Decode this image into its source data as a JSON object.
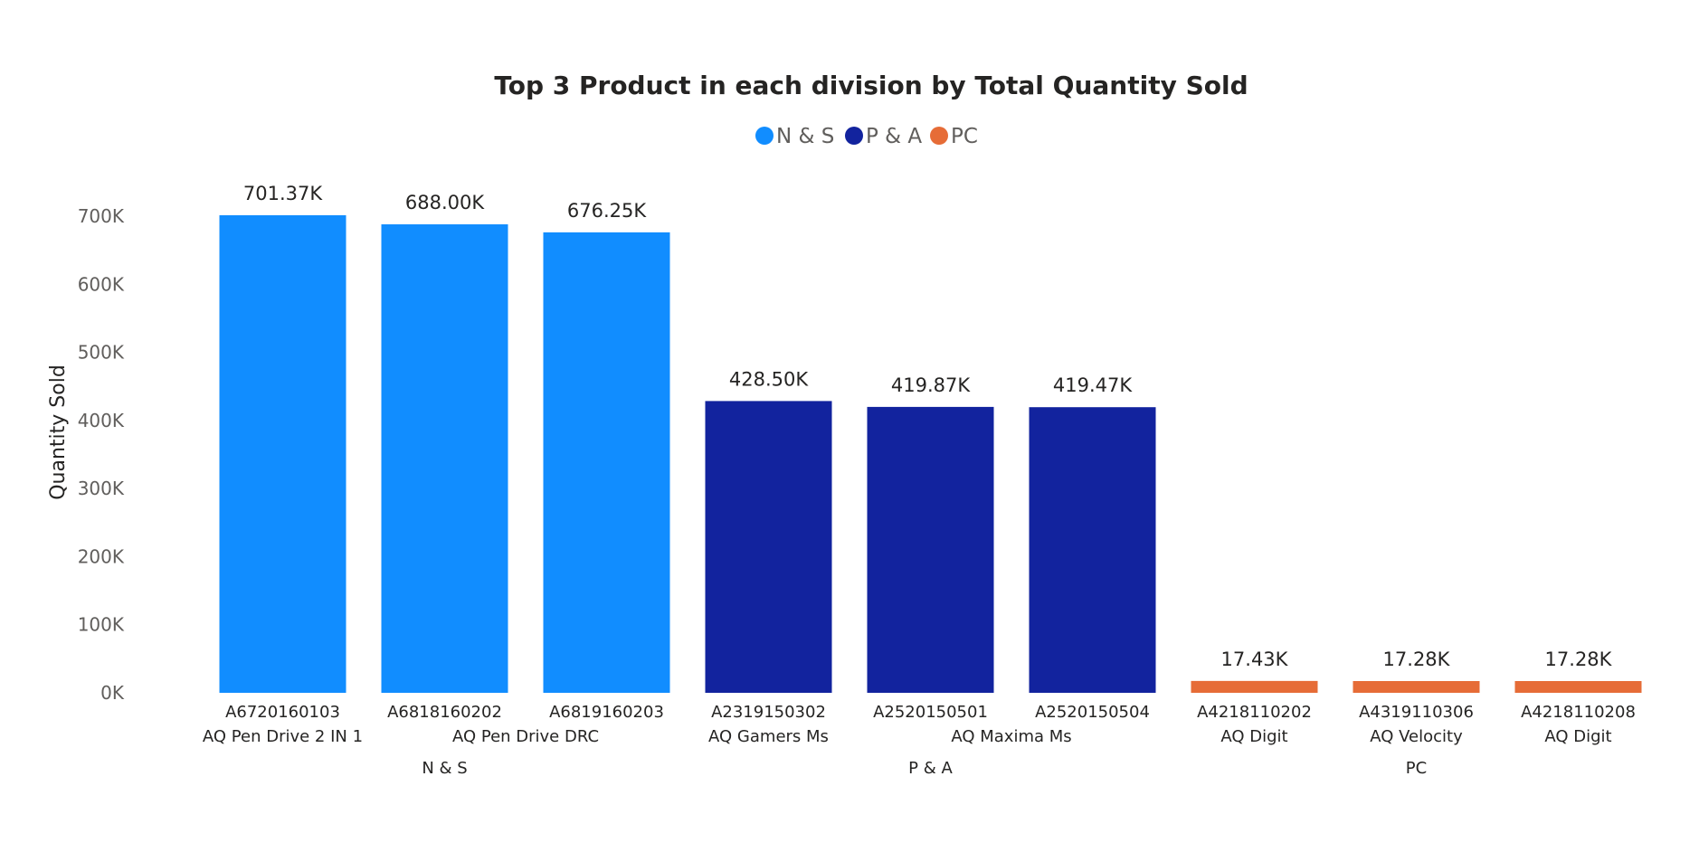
{
  "chart_data": {
    "type": "bar",
    "title": "Top 3 Product in each division by Total Quantity Sold",
    "ylabel": "Quantity Sold",
    "xlabel": "",
    "ylim": [
      0,
      700000
    ],
    "yticks": [
      0,
      100000,
      200000,
      300000,
      400000,
      500000,
      600000,
      700000
    ],
    "ytick_labels": [
      "0K",
      "100K",
      "200K",
      "300K",
      "400K",
      "500K",
      "600K",
      "700K"
    ],
    "grid": false,
    "legend_position": "top-center",
    "legend": [
      {
        "name": "N & S",
        "color": "#118dff"
      },
      {
        "name": "P & A",
        "color": "#12239e"
      },
      {
        "name": "PC",
        "color": "#e66c37"
      }
    ],
    "bars": [
      {
        "code": "A6720160103",
        "product": "AQ Pen Drive 2 IN 1",
        "division": "N & S",
        "value": 701370,
        "label": "701.37K"
      },
      {
        "code": "A6818160202",
        "product": "",
        "division": "N & S",
        "value": 688000,
        "label": "688.00K"
      },
      {
        "code": "A6819160203",
        "product": "",
        "division": "N & S",
        "value": 676250,
        "label": "676.25K"
      },
      {
        "code": "A2319150302",
        "product": "AQ Gamers Ms",
        "division": "P & A",
        "value": 428500,
        "label": "428.50K"
      },
      {
        "code": "A2520150501",
        "product": "",
        "division": "P & A",
        "value": 419870,
        "label": "419.87K"
      },
      {
        "code": "A2520150504",
        "product": "",
        "division": "P & A",
        "value": 419470,
        "label": "419.47K"
      },
      {
        "code": "A4218110202",
        "product": "AQ Digit",
        "division": "PC",
        "value": 17430,
        "label": "17.43K"
      },
      {
        "code": "A4319110306",
        "product": "AQ Velocity",
        "division": "PC",
        "value": 17280,
        "label": "17.28K"
      },
      {
        "code": "A4218110208",
        "product": "AQ Digit",
        "division": "PC",
        "value": 17280,
        "label": "17.28K"
      }
    ],
    "product_groups": [
      {
        "name": "AQ Pen Drive DRC",
        "bars": [
          1,
          2
        ]
      },
      {
        "name": "AQ Maxima Ms",
        "bars": [
          4,
          5
        ]
      }
    ],
    "divisions": [
      "N & S",
      "P & A",
      "PC"
    ]
  }
}
